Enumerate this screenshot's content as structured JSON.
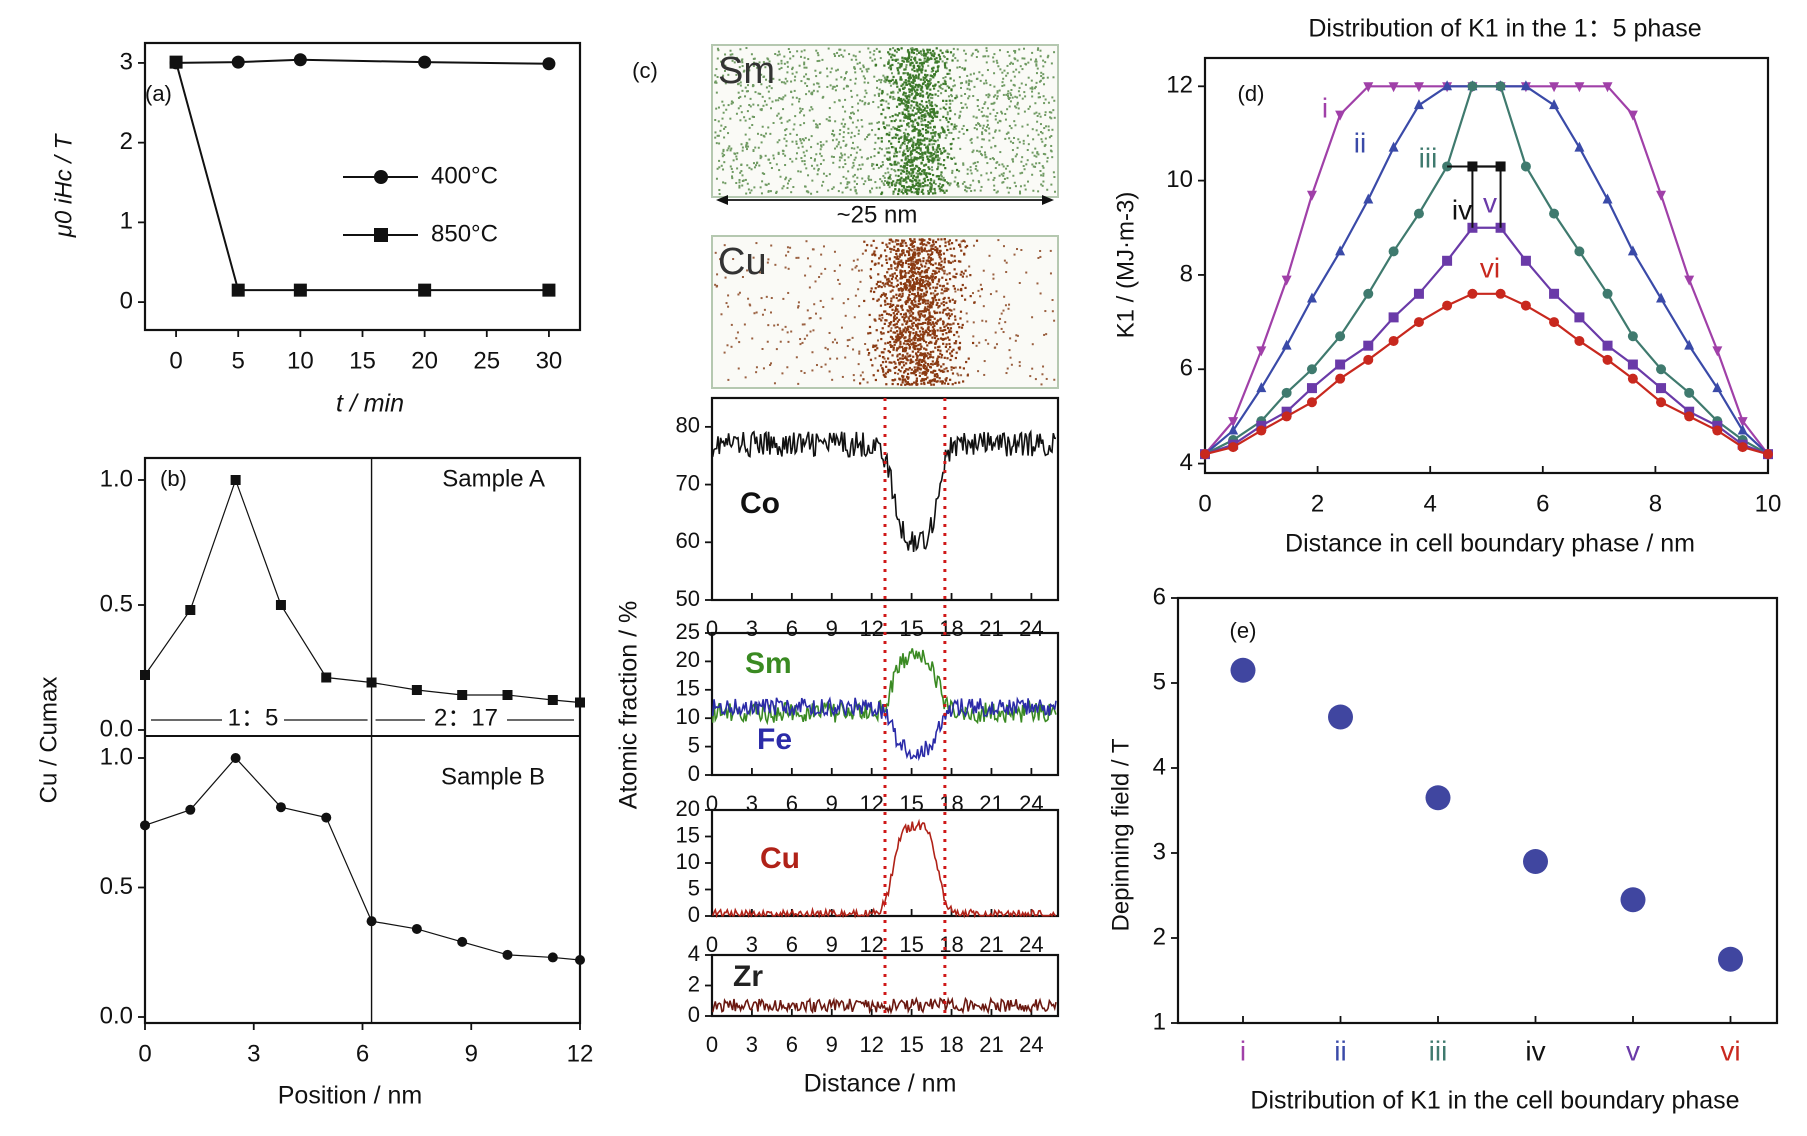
{
  "chart_data": [
    {
      "panel": "(a)",
      "type": "line",
      "xlabel": "t / min",
      "ylabel": "μ0 iHc / T",
      "xlim": [
        -2.5,
        32.5
      ],
      "ylim": [
        -0.35,
        3.25
      ],
      "xticks": [
        0,
        5,
        10,
        15,
        20,
        25,
        30
      ],
      "yticks": [
        0,
        1,
        2,
        3
      ],
      "legend": "center-right",
      "series": [
        {
          "name": "400°C",
          "marker": "circle",
          "x": [
            0,
            5,
            10,
            20,
            30
          ],
          "y": [
            3.0,
            3.01,
            3.04,
            3.01,
            2.99
          ]
        },
        {
          "name": "850°C",
          "marker": "square",
          "x": [
            0,
            5,
            10,
            20,
            30
          ],
          "y": [
            3.01,
            0.15,
            0.15,
            0.15,
            0.15
          ]
        }
      ]
    },
    {
      "panel": "(b)",
      "type": "line",
      "xlabel": "Position / nm",
      "ylabel": "Cu / Cumax",
      "xlim": [
        0,
        12
      ],
      "xticks": [
        0,
        3,
        6,
        9,
        12
      ],
      "yticks": [
        0.0,
        0.5,
        1.0
      ],
      "boundary_x": 6.25,
      "phase_labels": [
        "1：5",
        "2：17"
      ],
      "subplots": [
        {
          "name": "Sample A",
          "marker": "square",
          "x": [
            0,
            1.25,
            2.5,
            3.75,
            5.0,
            6.25,
            7.5,
            8.75,
            10.0,
            11.25,
            12.0
          ],
          "y": [
            0.22,
            0.48,
            1.0,
            0.5,
            0.21,
            0.19,
            0.16,
            0.14,
            0.14,
            0.12,
            0.11
          ]
        },
        {
          "name": "Sample B",
          "marker": "circle",
          "x": [
            0,
            1.25,
            2.5,
            3.75,
            5.0,
            6.25,
            7.5,
            8.75,
            10.0,
            11.25,
            12.0
          ],
          "y": [
            0.74,
            0.8,
            1.0,
            0.81,
            0.77,
            0.37,
            0.34,
            0.29,
            0.24,
            0.23,
            0.22
          ]
        }
      ]
    },
    {
      "panel": "(c)",
      "type": "line",
      "xlabel": "Distance / nm",
      "ylabel": "Atomic fraction / %",
      "maps": [
        "Sm",
        "Cu"
      ],
      "scale_label": "~25 nm",
      "xticks": [
        0,
        3,
        6,
        9,
        12,
        15,
        18,
        21,
        24
      ],
      "interface_x": [
        13.0,
        17.5
      ],
      "subplots": [
        {
          "ylim": [
            50,
            85
          ],
          "yticks": [
            50,
            60,
            70,
            80
          ],
          "series": [
            {
              "name": "Co",
              "color": "#111111",
              "base": 77,
              "dip": -17,
              "noise": 2.2
            }
          ]
        },
        {
          "ylim": [
            0,
            25
          ],
          "yticks": [
            0,
            5,
            10,
            15,
            20,
            25
          ],
          "series": [
            {
              "name": "Sm",
              "color": "#3a8a22",
              "base": 11,
              "dip": 10,
              "noise": 1.8
            },
            {
              "name": "Fe",
              "color": "#2b2ba8",
              "base": 12,
              "dip": -8,
              "noise": 1.6
            }
          ]
        },
        {
          "ylim": [
            0,
            20
          ],
          "yticks": [
            0,
            5,
            10,
            15,
            20
          ],
          "series": [
            {
              "name": "Cu",
              "color": "#b02218",
              "base": 0.3,
              "dip": 17,
              "noise": 0.9
            }
          ]
        },
        {
          "ylim": [
            0,
            4
          ],
          "yticks": [
            0,
            2,
            4
          ],
          "series": [
            {
              "name": "Zr",
              "color": "#6a1810",
              "base": 0.7,
              "dip": 0,
              "noise": 0.45
            }
          ]
        }
      ]
    },
    {
      "panel": "(d)",
      "type": "line",
      "title": "Distribution of K1 in the 1：5 phase",
      "xlabel": "Distance in cell boundary phase / nm",
      "ylabel": "K1 / (MJ·m-3)",
      "xlim": [
        0,
        10
      ],
      "ylim": [
        3.8,
        12.6
      ],
      "xticks": [
        0,
        2,
        4,
        6,
        8,
        10
      ],
      "yticks": [
        4,
        6,
        8,
        10,
        12
      ],
      "series": [
        {
          "name": "i",
          "color": "#a040a8",
          "marker": "triangle-down",
          "x": [
            0,
            0.5,
            1.0,
            1.45,
            1.9,
            2.4,
            2.9,
            3.35,
            3.8,
            4.3,
            4.75,
            5.25,
            5.7,
            6.2,
            6.65,
            7.15,
            7.6,
            8.1,
            8.6,
            9.1,
            9.55,
            10
          ],
          "y": [
            4.2,
            4.9,
            6.4,
            7.9,
            9.7,
            11.4,
            12,
            12,
            12,
            12,
            12,
            12,
            12,
            12,
            12,
            12,
            11.4,
            9.7,
            7.9,
            6.4,
            4.9,
            4.2
          ]
        },
        {
          "name": "ii",
          "color": "#3a4aa8",
          "marker": "triangle-up",
          "x": [
            0,
            0.5,
            1.0,
            1.45,
            1.9,
            2.4,
            2.9,
            3.35,
            3.8,
            4.3,
            4.75,
            5.25,
            5.7,
            6.2,
            6.65,
            7.15,
            7.6,
            8.1,
            8.6,
            9.1,
            9.55,
            10
          ],
          "y": [
            4.2,
            4.7,
            5.6,
            6.5,
            7.5,
            8.5,
            9.6,
            10.7,
            11.6,
            12,
            12,
            12,
            12,
            11.6,
            10.7,
            9.6,
            8.5,
            7.5,
            6.5,
            5.6,
            4.7,
            4.2
          ]
        },
        {
          "name": "iii",
          "color": "#3f7a6e",
          "marker": "circle",
          "x": [
            0,
            0.5,
            1.0,
            1.45,
            1.9,
            2.4,
            2.9,
            3.35,
            3.8,
            4.3,
            4.75,
            5.25,
            5.7,
            6.2,
            6.65,
            7.15,
            7.6,
            8.1,
            8.6,
            9.1,
            9.55,
            10
          ],
          "y": [
            4.2,
            4.5,
            4.9,
            5.5,
            6.0,
            6.7,
            7.6,
            8.5,
            9.3,
            10.3,
            12,
            12,
            10.3,
            9.3,
            8.5,
            7.6,
            6.7,
            6.0,
            5.5,
            4.9,
            4.5,
            4.2
          ]
        },
        {
          "name": "iv",
          "color": "#111111",
          "marker": "square",
          "x": [
            4.75,
            5.25
          ],
          "y": [
            10.3,
            10.3
          ]
        },
        {
          "name": "v",
          "color": "#6a3aa8",
          "marker": "square",
          "x": [
            0,
            0.5,
            1.0,
            1.45,
            1.9,
            2.4,
            2.9,
            3.35,
            3.8,
            4.3,
            4.75,
            5.25,
            5.7,
            6.2,
            6.65,
            7.15,
            7.6,
            8.1,
            8.6,
            9.1,
            9.55,
            10
          ],
          "y": [
            4.2,
            4.4,
            4.8,
            5.1,
            5.6,
            6.1,
            6.5,
            7.1,
            7.6,
            8.3,
            9.0,
            9.0,
            8.3,
            7.6,
            7.1,
            6.5,
            6.1,
            5.6,
            5.1,
            4.8,
            4.4,
            4.2
          ]
        },
        {
          "name": "vi",
          "color": "#c8281e",
          "marker": "circle",
          "x": [
            0,
            0.5,
            1.0,
            1.45,
            1.9,
            2.4,
            2.9,
            3.35,
            3.8,
            4.3,
            4.75,
            5.25,
            5.7,
            6.2,
            6.65,
            7.15,
            7.6,
            8.1,
            8.6,
            9.1,
            9.55,
            10
          ],
          "y": [
            4.2,
            4.35,
            4.7,
            5.0,
            5.3,
            5.8,
            6.2,
            6.6,
            7.0,
            7.35,
            7.6,
            7.6,
            7.35,
            7.0,
            6.6,
            6.2,
            5.8,
            5.3,
            5.0,
            4.7,
            4.35,
            4.2
          ]
        }
      ]
    },
    {
      "panel": "(e)",
      "type": "scatter",
      "xlabel": "Distribution of K1 in the cell boundary phase",
      "ylabel": "Depinning field / T",
      "categories": [
        "i",
        "ii",
        "iii",
        "iv",
        "v",
        "vi"
      ],
      "category_colors": [
        "#a040a8",
        "#3a4aa8",
        "#3f7a6e",
        "#111111",
        "#6a3aa8",
        "#c8281e"
      ],
      "values": [
        5.15,
        4.6,
        3.65,
        2.9,
        2.45,
        1.75
      ],
      "ylim": [
        1,
        6
      ],
      "yticks": [
        1,
        2,
        3,
        4,
        5,
        6
      ],
      "marker_color": "#4046a0"
    }
  ]
}
